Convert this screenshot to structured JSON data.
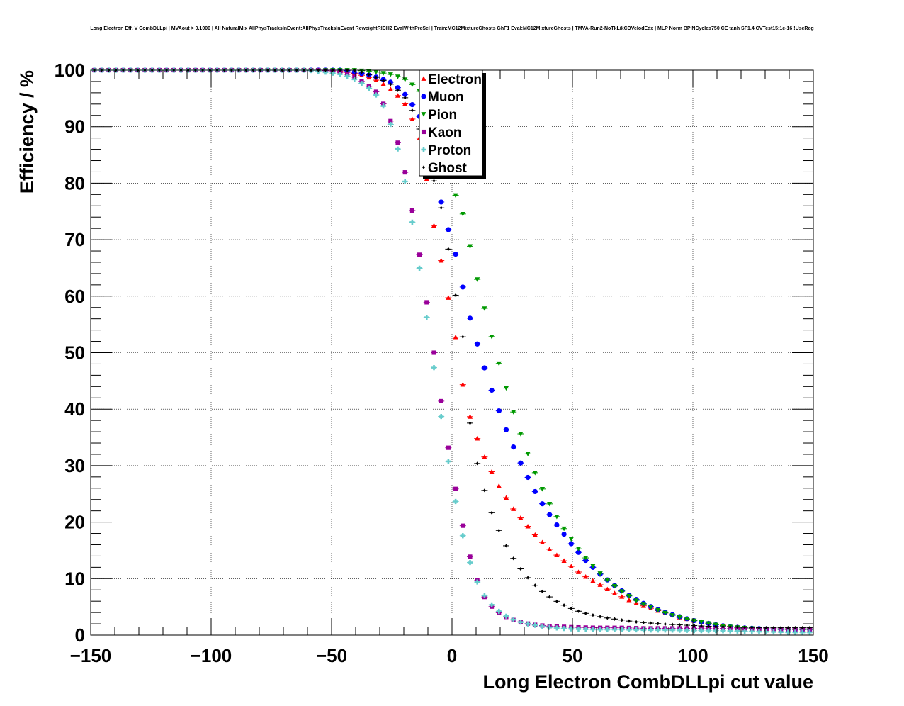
{
  "chart_data": {
    "type": "scatter",
    "title": "Long Electron Eff. V CombDLLpi | MVAout > 0.1000 | All NaturalMix AllPhysTracksInEvent:AllPhysTracksInEvent ReweightRICH2 EvalWithPreSel | Train:MC12MixtureGhosts GhF1 Eval:MC12MixtureGhosts | TMVA-Run2-NoTkLikCDVelodEdx | MLP Norm BP NCycles750 CE tanh SF1.4 CVTest15:1e-16 !UseReg",
    "xlabel": "Long Electron CombDLLpi cut value",
    "ylabel": "Efficiency / %",
    "xlim": [
      -150,
      150
    ],
    "ylim": [
      0,
      100
    ],
    "x_ticks": [
      -150,
      -100,
      -50,
      0,
      50,
      100,
      150
    ],
    "x_tick_labels": [
      "−150",
      "−100",
      "−50",
      "0",
      "50",
      "100",
      "150"
    ],
    "y_ticks": [
      0,
      10,
      20,
      30,
      40,
      50,
      60,
      70,
      80,
      90,
      100
    ],
    "y_tick_labels": [
      "0",
      "10",
      "20",
      "30",
      "40",
      "50",
      "60",
      "70",
      "80",
      "90",
      "100"
    ],
    "grid": true,
    "legend_position": "top-center",
    "series": [
      {
        "name": "Electron",
        "color": "#ff0000",
        "marker": "triangle-up",
        "points": [
          [
            -150,
            100
          ],
          [
            -50,
            100
          ],
          [
            -40,
            99.4
          ],
          [
            -35,
            98.8
          ],
          [
            -30,
            98.0
          ],
          [
            -25,
            96.5
          ],
          [
            -20,
            94.5
          ],
          [
            -15,
            90.0
          ],
          [
            -12,
            86.0
          ],
          [
            -10,
            79.0
          ],
          [
            -8,
            73.5
          ],
          [
            -5,
            67.5
          ],
          [
            -2,
            60.3
          ],
          [
            0,
            58.0
          ],
          [
            2,
            51.0
          ],
          [
            5,
            43.0
          ],
          [
            8,
            37.8
          ],
          [
            11,
            34.2
          ],
          [
            14,
            31.0
          ],
          [
            17,
            28.5
          ],
          [
            20,
            26.0
          ],
          [
            23,
            24.0
          ],
          [
            26,
            22.0
          ],
          [
            29,
            20.5
          ],
          [
            32,
            19.0
          ],
          [
            35,
            17.5
          ],
          [
            38,
            16.2
          ],
          [
            41,
            15.0
          ],
          [
            44,
            14.0
          ],
          [
            47,
            13.0
          ],
          [
            50,
            12.0
          ],
          [
            53,
            11.0
          ],
          [
            56,
            10.2
          ],
          [
            59,
            9.5
          ],
          [
            62,
            8.8
          ],
          [
            65,
            8.0
          ],
          [
            68,
            7.3
          ],
          [
            71,
            6.7
          ],
          [
            74,
            6.1
          ],
          [
            77,
            5.6
          ],
          [
            80,
            5.1
          ],
          [
            85,
            4.4
          ],
          [
            90,
            3.7
          ],
          [
            95,
            3.1
          ],
          [
            100,
            2.6
          ],
          [
            105,
            2.2
          ],
          [
            110,
            1.9
          ],
          [
            115,
            1.6
          ],
          [
            120,
            1.4
          ],
          [
            125,
            1.2
          ],
          [
            130,
            1.1
          ],
          [
            140,
            1.0
          ],
          [
            150,
            1.0
          ]
        ]
      },
      {
        "name": "Muon",
        "color": "#0000ff",
        "marker": "circle",
        "points": [
          [
            -150,
            100
          ],
          [
            -45,
            100
          ],
          [
            -40,
            99.6
          ],
          [
            -35,
            99.2
          ],
          [
            -30,
            98.6
          ],
          [
            -25,
            97.8
          ],
          [
            -20,
            96.0
          ],
          [
            -15,
            93.0
          ],
          [
            -10,
            89.0
          ],
          [
            -5,
            77.5
          ],
          [
            -2,
            72.5
          ],
          [
            2,
            66.7
          ],
          [
            5,
            60.6
          ],
          [
            8,
            55.2
          ],
          [
            11,
            50.8
          ],
          [
            14,
            46.6
          ],
          [
            17,
            42.7
          ],
          [
            20,
            39.1
          ],
          [
            23,
            35.8
          ],
          [
            26,
            32.8
          ],
          [
            29,
            30.0
          ],
          [
            32,
            27.5
          ],
          [
            35,
            25.0
          ],
          [
            38,
            22.9
          ],
          [
            41,
            21.0
          ],
          [
            44,
            19.2
          ],
          [
            47,
            17.6
          ],
          [
            50,
            15.9
          ],
          [
            53,
            14.4
          ],
          [
            56,
            13.0
          ],
          [
            59,
            11.8
          ],
          [
            62,
            10.6
          ],
          [
            65,
            9.6
          ],
          [
            68,
            8.6
          ],
          [
            71,
            7.7
          ],
          [
            74,
            6.9
          ],
          [
            77,
            6.2
          ],
          [
            80,
            5.5
          ],
          [
            85,
            4.6
          ],
          [
            90,
            3.8
          ],
          [
            95,
            3.2
          ],
          [
            100,
            2.6
          ],
          [
            105,
            2.2
          ],
          [
            110,
            1.8
          ],
          [
            115,
            1.5
          ],
          [
            120,
            1.3
          ],
          [
            130,
            1.1
          ],
          [
            140,
            1.0
          ],
          [
            150,
            1.0
          ]
        ]
      },
      {
        "name": "Pion",
        "color": "#009900",
        "marker": "triangle-down",
        "points": [
          [
            -150,
            100
          ],
          [
            -40,
            100
          ],
          [
            -35,
            99.8
          ],
          [
            -30,
            99.6
          ],
          [
            -25,
            99.2
          ],
          [
            -20,
            98.5
          ],
          [
            -15,
            97.0
          ],
          [
            -12,
            95.5
          ],
          [
            -8,
            92.0
          ],
          [
            -5,
            88.0
          ],
          [
            0,
            79.5
          ],
          [
            5,
            74.0
          ],
          [
            8,
            67.8
          ],
          [
            11,
            62.0
          ],
          [
            14,
            57.0
          ],
          [
            17,
            52.0
          ],
          [
            20,
            47.3
          ],
          [
            23,
            43.0
          ],
          [
            26,
            38.8
          ],
          [
            29,
            35.0
          ],
          [
            32,
            31.5
          ],
          [
            35,
            28.2
          ],
          [
            38,
            25.4
          ],
          [
            41,
            22.8
          ],
          [
            44,
            20.6
          ],
          [
            47,
            18.5
          ],
          [
            50,
            16.7
          ],
          [
            53,
            15.0
          ],
          [
            56,
            13.4
          ],
          [
            59,
            12.0
          ],
          [
            62,
            10.7
          ],
          [
            65,
            9.6
          ],
          [
            68,
            8.5
          ],
          [
            71,
            7.6
          ],
          [
            74,
            6.8
          ],
          [
            77,
            6.0
          ],
          [
            80,
            5.4
          ],
          [
            85,
            4.5
          ],
          [
            90,
            3.7
          ],
          [
            95,
            3.1
          ],
          [
            100,
            2.6
          ],
          [
            105,
            2.2
          ],
          [
            110,
            1.8
          ],
          [
            115,
            1.5
          ],
          [
            120,
            1.3
          ],
          [
            130,
            1.1
          ],
          [
            140,
            1.0
          ],
          [
            150,
            1.0
          ]
        ]
      },
      {
        "name": "Kaon",
        "color": "#990099",
        "marker": "square",
        "points": [
          [
            -150,
            100
          ],
          [
            -55,
            100
          ],
          [
            -50,
            99.8
          ],
          [
            -45,
            99.5
          ],
          [
            -40,
            98.7
          ],
          [
            -35,
            97.3
          ],
          [
            -30,
            95.7
          ],
          [
            -28,
            93.5
          ],
          [
            -25,
            90.5
          ],
          [
            -22,
            86.5
          ],
          [
            -19,
            81.0
          ],
          [
            -16,
            74.0
          ],
          [
            -13,
            66.0
          ],
          [
            -10,
            57.5
          ],
          [
            -7,
            48.5
          ],
          [
            -4,
            40.0
          ],
          [
            -1,
            31.8
          ],
          [
            2,
            24.7
          ],
          [
            5,
            18.3
          ],
          [
            8,
            13.0
          ],
          [
            11,
            9.0
          ],
          [
            14,
            6.3
          ],
          [
            17,
            4.8
          ],
          [
            20,
            3.8
          ],
          [
            23,
            3.1
          ],
          [
            26,
            2.6
          ],
          [
            29,
            2.3
          ],
          [
            32,
            2.0
          ],
          [
            35,
            1.8
          ],
          [
            40,
            1.6
          ],
          [
            45,
            1.5
          ],
          [
            50,
            1.4
          ],
          [
            60,
            1.3
          ],
          [
            70,
            1.3
          ],
          [
            80,
            1.2
          ],
          [
            90,
            1.2
          ],
          [
            100,
            1.2
          ],
          [
            110,
            1.2
          ],
          [
            120,
            1.1
          ],
          [
            130,
            1.1
          ],
          [
            140,
            1.1
          ],
          [
            150,
            1.1
          ]
        ]
      },
      {
        "name": "Proton",
        "color": "#66cccc",
        "marker": "cross",
        "points": [
          [
            -150,
            100
          ],
          [
            -60,
            100
          ],
          [
            -55,
            99.8
          ],
          [
            -50,
            99.5
          ],
          [
            -45,
            99.2
          ],
          [
            -40,
            98.3
          ],
          [
            -35,
            97.0
          ],
          [
            -30,
            95.0
          ],
          [
            -27,
            92.3
          ],
          [
            -24,
            88.5
          ],
          [
            -21,
            83.6
          ],
          [
            -18,
            77.0
          ],
          [
            -15,
            69.2
          ],
          [
            -12,
            60.7
          ],
          [
            -9,
            51.8
          ],
          [
            -6,
            42.9
          ],
          [
            -3,
            34.5
          ],
          [
            0,
            27.0
          ],
          [
            3,
            20.3
          ],
          [
            6,
            14.9
          ],
          [
            9,
            10.8
          ],
          [
            12,
            8.0
          ],
          [
            15,
            6.0
          ],
          [
            18,
            4.7
          ],
          [
            21,
            3.7
          ],
          [
            24,
            3.0
          ],
          [
            27,
            2.5
          ],
          [
            30,
            2.1
          ],
          [
            35,
            1.7
          ],
          [
            40,
            1.4
          ],
          [
            45,
            1.2
          ],
          [
            50,
            1.1
          ],
          [
            60,
            1.0
          ],
          [
            70,
            1.0
          ],
          [
            80,
            0.9
          ],
          [
            90,
            0.9
          ],
          [
            100,
            0.8
          ],
          [
            110,
            0.8
          ],
          [
            120,
            0.7
          ],
          [
            130,
            0.6
          ],
          [
            140,
            0.5
          ],
          [
            150,
            0.5
          ]
        ]
      },
      {
        "name": "Ghost",
        "color": "#000000",
        "marker": "diamond",
        "points": [
          [
            -150,
            100
          ],
          [
            -40,
            100
          ],
          [
            -35,
            99.3
          ],
          [
            -30,
            98.5
          ],
          [
            -25,
            97.4
          ],
          [
            -20,
            95.5
          ],
          [
            -16,
            92.5
          ],
          [
            -13,
            89.0
          ],
          [
            -10,
            84.0
          ],
          [
            -5,
            76.8
          ],
          [
            -2,
            69.8
          ],
          [
            1,
            61.0
          ],
          [
            4,
            56.0
          ],
          [
            5,
            49.6
          ],
          [
            7,
            38.8
          ],
          [
            10,
            31.2
          ],
          [
            13,
            26.3
          ],
          [
            16,
            22.2
          ],
          [
            19,
            19.0
          ],
          [
            22,
            16.2
          ],
          [
            25,
            13.9
          ],
          [
            28,
            12.0
          ],
          [
            31,
            10.4
          ],
          [
            34,
            9.0
          ],
          [
            37,
            7.9
          ],
          [
            40,
            6.9
          ],
          [
            43,
            6.1
          ],
          [
            46,
            5.4
          ],
          [
            49,
            4.8
          ],
          [
            52,
            4.3
          ],
          [
            55,
            3.9
          ],
          [
            60,
            3.4
          ],
          [
            65,
            3.0
          ],
          [
            70,
            2.7
          ],
          [
            75,
            2.4
          ],
          [
            80,
            2.2
          ],
          [
            90,
            1.9
          ],
          [
            100,
            1.7
          ],
          [
            110,
            1.5
          ],
          [
            120,
            1.4
          ],
          [
            130,
            1.3
          ],
          [
            140,
            1.3
          ],
          [
            150,
            1.3
          ]
        ]
      }
    ]
  }
}
